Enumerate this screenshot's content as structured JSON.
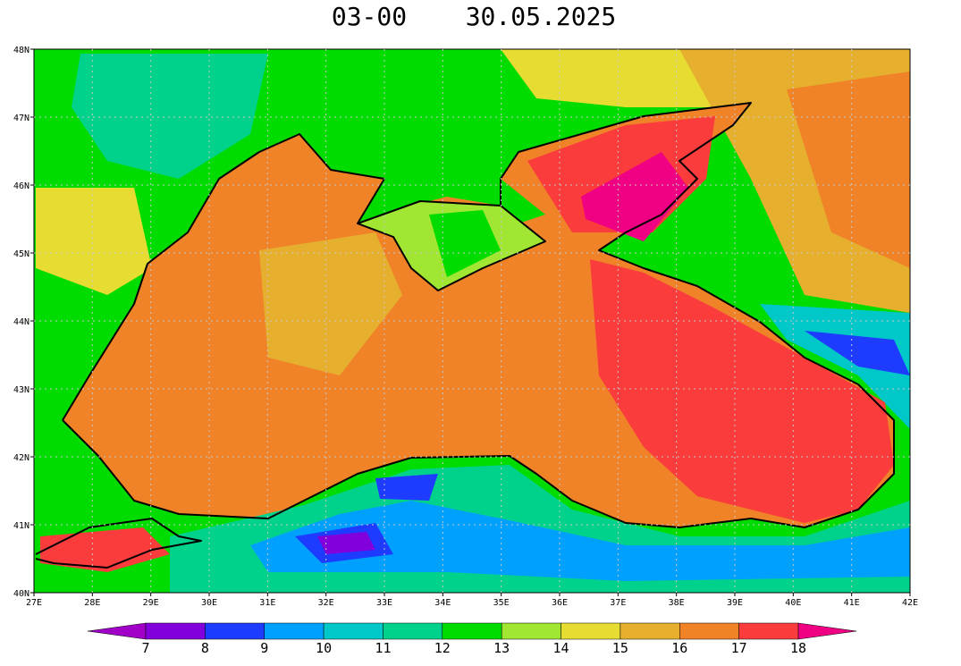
{
  "title": {
    "time": "03-00",
    "date": "30.05.2025"
  },
  "lat_labels": [
    "48N",
    "47N",
    "46N",
    "45N",
    "44N",
    "43N",
    "42N",
    "41N",
    "40N"
  ],
  "lon_labels": [
    "27E",
    "28E",
    "29E",
    "30E",
    "31E",
    "32E",
    "33E",
    "34E",
    "35E",
    "36E",
    "37E",
    "38E",
    "39E",
    "40E",
    "41E",
    "42E"
  ],
  "colorbar": {
    "labels": [
      7,
      8,
      9,
      10,
      11,
      12,
      13,
      14,
      15,
      16,
      17,
      18
    ],
    "colors": [
      "#a000c8",
      "#8200dc",
      "#1e3cff",
      "#00a0ff",
      "#00c8c8",
      "#00d28c",
      "#00dc00",
      "#a0e632",
      "#e6dc32",
      "#e6af2d",
      "#f08228",
      "#fa3c3c",
      "#f00082"
    ]
  }
}
